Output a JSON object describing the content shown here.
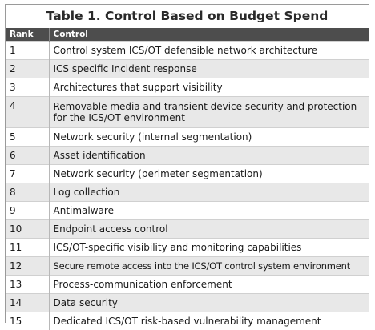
{
  "table": {
    "title": "Table 1. Control Based on Budget Spend",
    "headers": {
      "rank": "Rank",
      "control": "Control"
    },
    "rows": [
      {
        "rank": "1",
        "control": "Control system ICS/OT defensible network architecture"
      },
      {
        "rank": "2",
        "control": "ICS specific Incident response"
      },
      {
        "rank": "3",
        "control": "Architectures that support visibility"
      },
      {
        "rank": "4",
        "control": "Removable media and transient device security and protection for the ICS/OT environment"
      },
      {
        "rank": "5",
        "control": "Network security (internal segmentation)"
      },
      {
        "rank": "6",
        "control": "Asset identification"
      },
      {
        "rank": "7",
        "control": "Network security (perimeter segmentation)"
      },
      {
        "rank": "8",
        "control": "Log collection"
      },
      {
        "rank": "9",
        "control": "Antimalware"
      },
      {
        "rank": "10",
        "control": "Endpoint access control"
      },
      {
        "rank": "11",
        "control": "ICS/OT-specific visibility and monitoring capabilities"
      },
      {
        "rank": "12",
        "control": "Secure remote access into the ICS/OT control system environment"
      },
      {
        "rank": "13",
        "control": "Process-communication enforcement"
      },
      {
        "rank": "14",
        "control": "Data security"
      },
      {
        "rank": "15",
        "control": "Dedicated ICS/OT risk-based vulnerability management"
      }
    ]
  }
}
